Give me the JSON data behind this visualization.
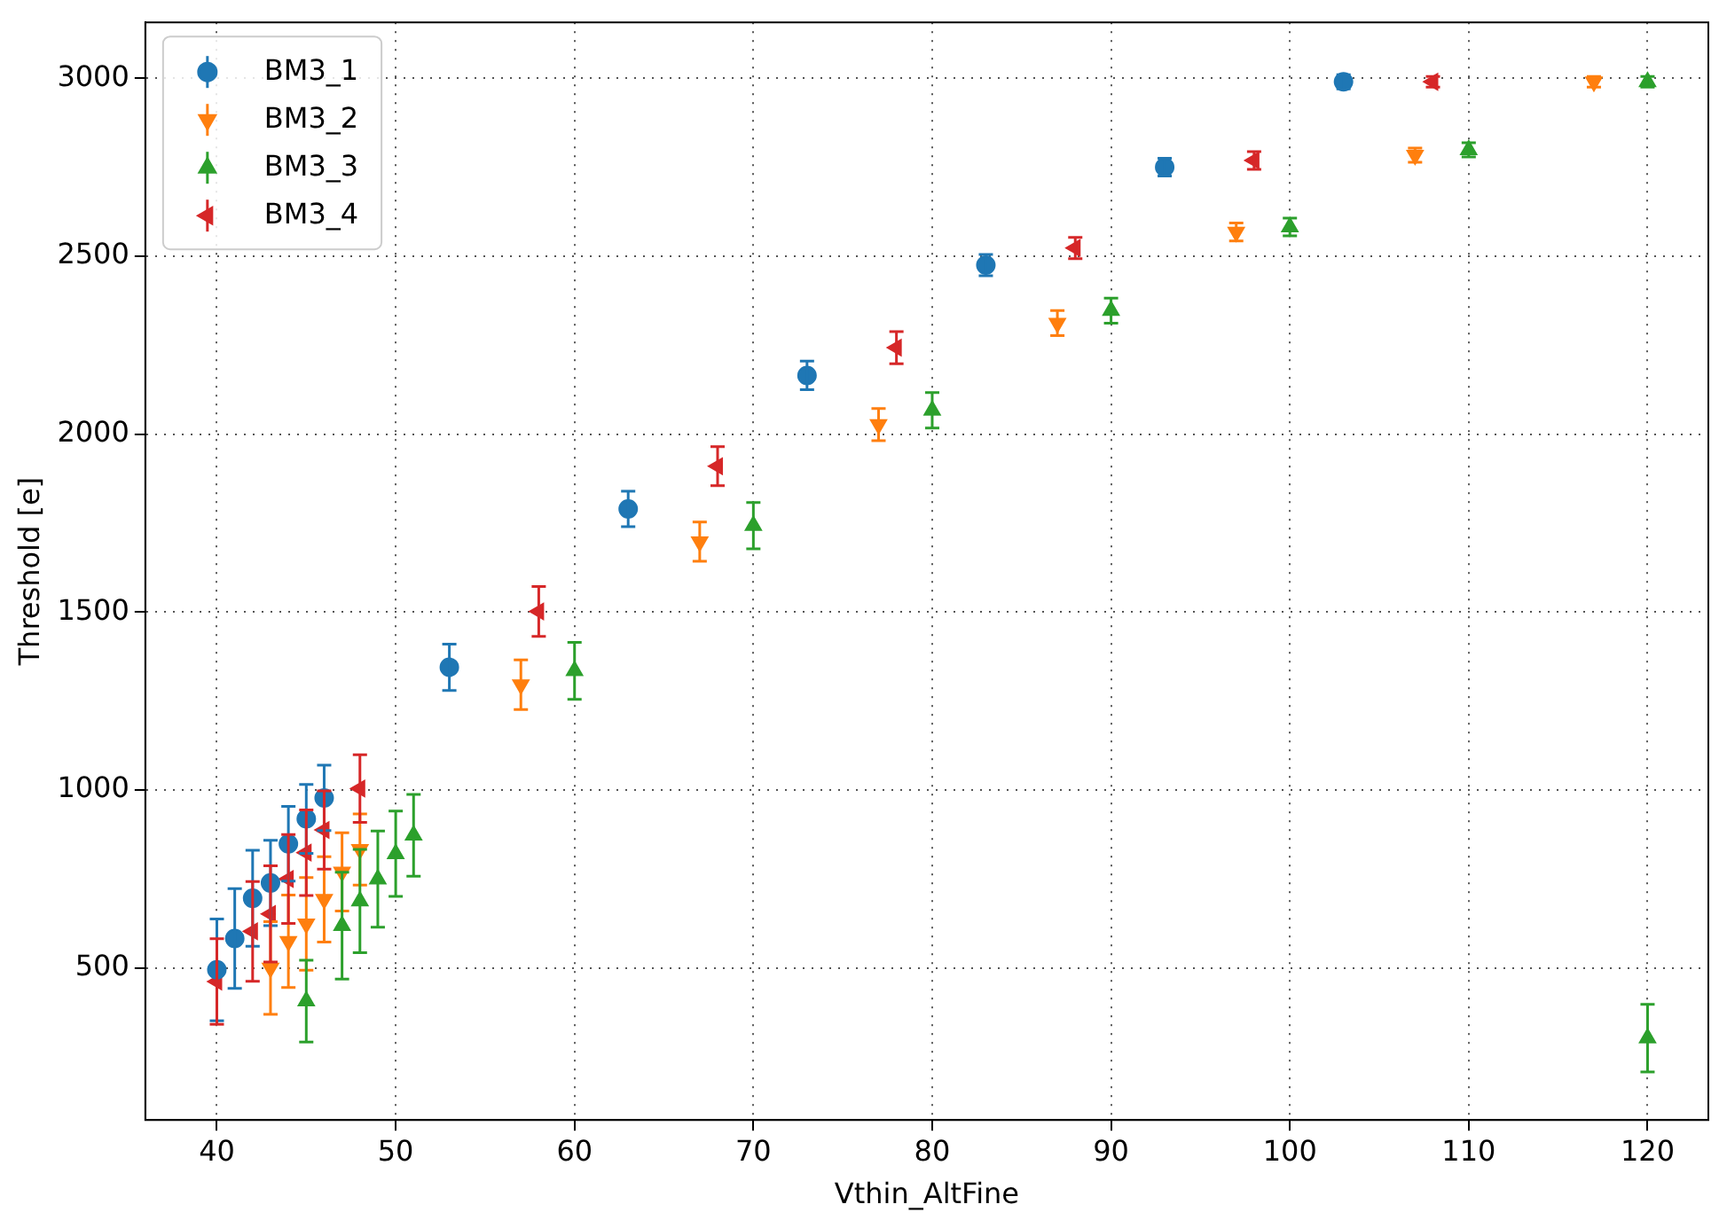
{
  "chart_data": {
    "type": "scatter",
    "xlabel": "Vthin_AltFine",
    "ylabel": "Threshold [e]",
    "xlim": [
      36,
      123.4
    ],
    "xticks": [
      40,
      50,
      60,
      70,
      80,
      90,
      100,
      110,
      120
    ],
    "ylim": [
      73,
      3157
    ],
    "yticks": [
      500,
      1000,
      1500,
      2000,
      2500,
      3000
    ],
    "grid": true,
    "legend": "top left",
    "series": [
      {
        "name": "BM3_1",
        "color": "#1f77b4",
        "marker": "circle",
        "x": [
          40,
          41,
          42,
          43,
          44,
          45,
          46,
          53,
          63,
          73,
          83,
          93,
          103
        ],
        "values": [
          495,
          583,
          696,
          739,
          849,
          919,
          978,
          1345,
          1790,
          2165,
          2475,
          2750,
          2990
        ],
        "errors": [
          143,
          140,
          135,
          120,
          105,
          97,
          92,
          65,
          50,
          40,
          30,
          25,
          20
        ]
      },
      {
        "name": "BM3_2",
        "color": "#ff7f0e",
        "marker": "triangle-down",
        "x": [
          43,
          44,
          45,
          46,
          47,
          48,
          57,
          67,
          77,
          87,
          97,
          107,
          117
        ],
        "values": [
          500,
          575,
          624,
          693,
          770,
          833,
          1296,
          1698,
          2027,
          2312,
          2568,
          2784,
          2990
        ],
        "errors": [
          130,
          130,
          130,
          120,
          110,
          100,
          70,
          55,
          45,
          35,
          25,
          20,
          15
        ]
      },
      {
        "name": "BM3_3",
        "color": "#2ca02c",
        "marker": "triangle",
        "x": [
          45,
          47,
          48,
          49,
          50,
          51,
          60,
          70,
          80,
          90,
          100,
          110,
          120,
          120
        ],
        "values": [
          407,
          619,
          688,
          750,
          821,
          873,
          1335,
          1743,
          2067,
          2347,
          2582,
          2799,
          2990,
          303
        ],
        "errors": [
          115,
          150,
          145,
          135,
          120,
          115,
          80,
          65,
          50,
          35,
          25,
          20,
          15,
          95
        ]
      },
      {
        "name": "BM3_4",
        "color": "#d62728",
        "marker": "triangle-left",
        "x": [
          40,
          42,
          43,
          44,
          45,
          46,
          48,
          58,
          68,
          78,
          88,
          98,
          108
        ],
        "values": [
          462,
          603,
          652,
          750,
          824,
          888,
          1004,
          1502,
          1910,
          2243,
          2523,
          2769,
          2990
        ],
        "errors": [
          120,
          140,
          135,
          125,
          120,
          110,
          95,
          70,
          55,
          45,
          30,
          25,
          15
        ]
      }
    ]
  }
}
